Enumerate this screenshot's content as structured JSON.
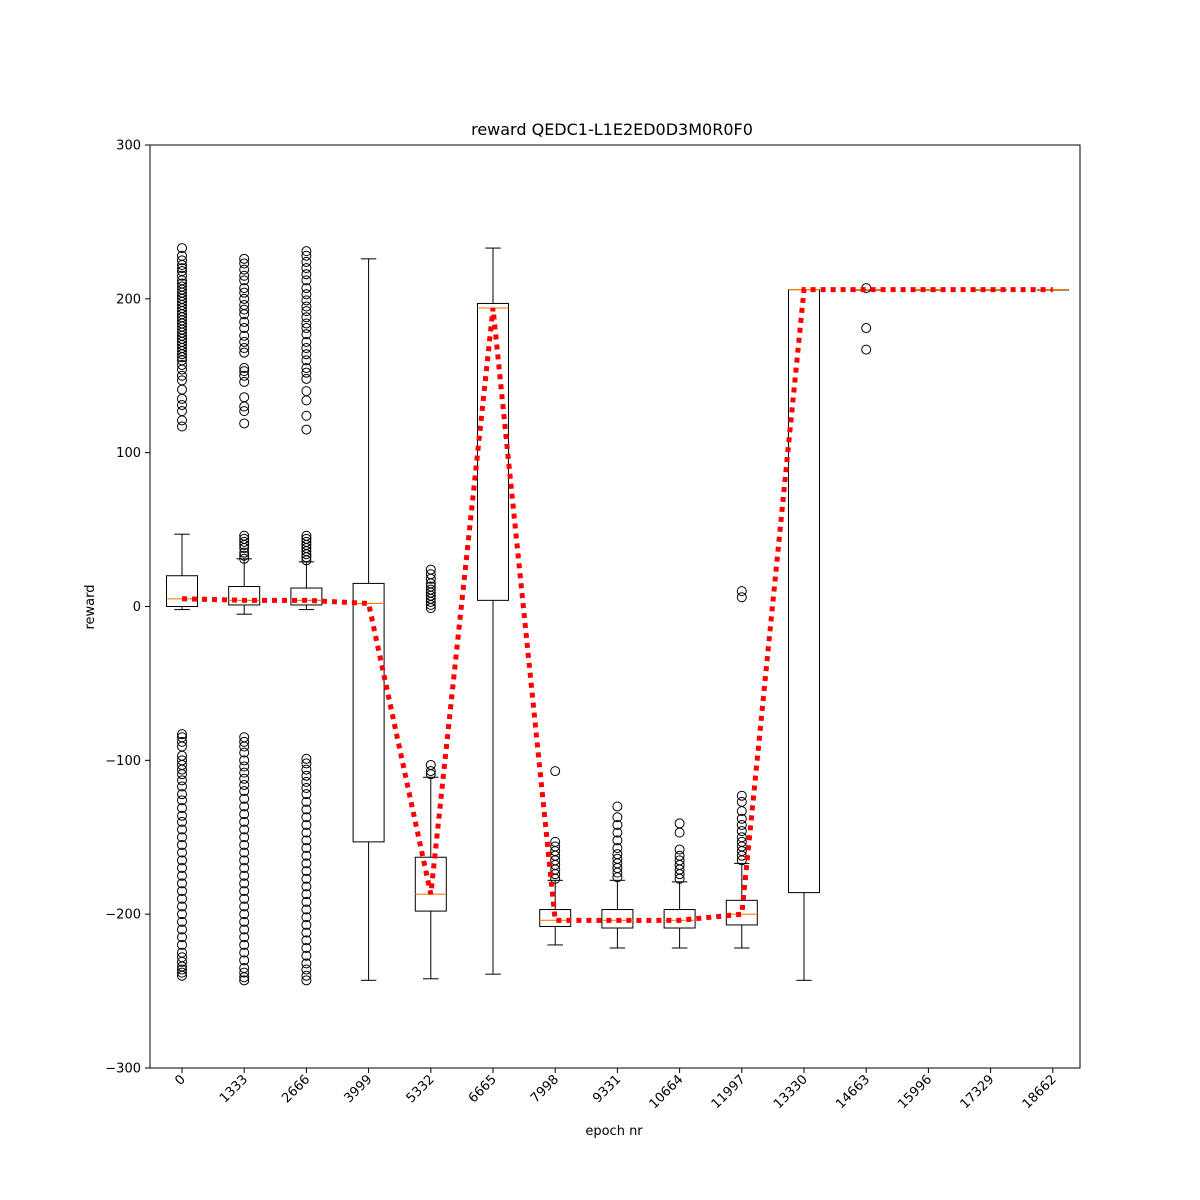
{
  "chart_data": {
    "type": "box",
    "title": "reward QEDC1-L1E2ED0D3M0R0F0",
    "xlabel": "epoch nr",
    "ylabel": "reward",
    "ylim": [
      -300,
      300
    ],
    "yticks": [
      -300,
      -200,
      -100,
      0,
      100,
      200,
      300
    ],
    "yticklabels": [
      "−300",
      "−200",
      "−100",
      "0",
      "100",
      "200",
      "300"
    ],
    "categories": [
      "0",
      "1333",
      "2666",
      "3999",
      "5332",
      "6665",
      "7998",
      "9331",
      "10664",
      "11997",
      "13330",
      "14663",
      "15996",
      "17329",
      "18662"
    ],
    "colors": {
      "box": "#000000",
      "median": "#ff7f0e",
      "mean_line": "#ff0000"
    },
    "boxes": [
      {
        "q1": 0,
        "median": 5,
        "q3": 20,
        "whisker_low": -2,
        "whisker_high": 47,
        "outliers": [
          233,
          228,
          225,
          222,
          220,
          218,
          215,
          212,
          210,
          208,
          206,
          204,
          202,
          200,
          198,
          196,
          194,
          192,
          190,
          188,
          186,
          184,
          182,
          180,
          178,
          176,
          174,
          172,
          170,
          168,
          166,
          164,
          162,
          160,
          157,
          154,
          150,
          147,
          141,
          135,
          131,
          127,
          121,
          117,
          -83,
          -85,
          -88,
          -91,
          -97,
          -100,
          -103,
          -106,
          -109,
          -113,
          -117,
          -122,
          -126,
          -131,
          -136,
          -140,
          -145,
          -150,
          -155,
          -160,
          -165,
          -170,
          -175,
          -180,
          -185,
          -190,
          -195,
          -200,
          -205,
          -210,
          -215,
          -220,
          -225,
          -228,
          -231,
          -234,
          -236,
          -238,
          -240
        ]
      },
      {
        "q1": 1,
        "median": 4,
        "q3": 13,
        "whisker_low": -5,
        "whisker_high": 31,
        "outliers": [
          226,
          223,
          219,
          215,
          212,
          207,
          204,
          200,
          196,
          193,
          190,
          185,
          181,
          176,
          172,
          168,
          165,
          155,
          153,
          150,
          146,
          136,
          130,
          127,
          119,
          46,
          44,
          42,
          40,
          38,
          35,
          33,
          31,
          -85,
          -88,
          -91,
          -95,
          -100,
          -104,
          -108,
          -112,
          -116,
          -120,
          -125,
          -130,
          -135,
          -140,
          -145,
          -150,
          -155,
          -160,
          -165,
          -170,
          -175,
          -180,
          -185,
          -190,
          -195,
          -200,
          -205,
          -210,
          -215,
          -220,
          -225,
          -230,
          -235,
          -238,
          -241,
          -243
        ]
      },
      {
        "q1": 1,
        "median": 4,
        "q3": 12,
        "whisker_low": -2,
        "whisker_high": 29,
        "outliers": [
          231,
          228,
          224,
          220,
          216,
          212,
          207,
          203,
          199,
          195,
          192,
          188,
          184,
          181,
          177,
          172,
          168,
          164,
          160,
          155,
          152,
          148,
          140,
          134,
          124,
          115,
          46,
          44,
          42,
          40,
          38,
          36,
          34,
          32,
          30,
          -99,
          -102,
          -106,
          -110,
          -114,
          -118,
          -122,
          -127,
          -132,
          -137,
          -142,
          -147,
          -152,
          -157,
          -162,
          -167,
          -172,
          -177,
          -182,
          -187,
          -192,
          -197,
          -202,
          -207,
          -212,
          -217,
          -222,
          -227,
          -232,
          -236,
          -240,
          -243
        ]
      },
      {
        "q1": -153,
        "median": 2,
        "q3": 15,
        "whisker_low": -243,
        "whisker_high": 226,
        "outliers": []
      },
      {
        "q1": -198,
        "median": -187,
        "q3": -163,
        "whisker_low": -242,
        "whisker_high": -111,
        "outliers": [
          24,
          21,
          18,
          15,
          13,
          11,
          9,
          7,
          5,
          3,
          1,
          -1,
          -103,
          -107,
          -109
        ]
      },
      {
        "q1": 4,
        "median": 194,
        "q3": 197,
        "whisker_low": -239,
        "whisker_high": 233,
        "outliers": []
      },
      {
        "q1": -208,
        "median": -204,
        "q3": -197,
        "whisker_low": -220,
        "whisker_high": -178,
        "outliers": [
          -107,
          -153,
          -156,
          -159,
          -162,
          -165,
          -168,
          -171,
          -174,
          -177
        ]
      },
      {
        "q1": -209,
        "median": -204,
        "q3": -197,
        "whisker_low": -222,
        "whisker_high": -178,
        "outliers": [
          -130,
          -137,
          -142,
          -147,
          -152,
          -157,
          -161,
          -164,
          -167,
          -170,
          -173,
          -176
        ]
      },
      {
        "q1": -209,
        "median": -204,
        "q3": -197,
        "whisker_low": -222,
        "whisker_high": -179,
        "outliers": [
          -141,
          -147,
          -158,
          -162,
          -165,
          -168,
          -171,
          -174,
          -177
        ]
      },
      {
        "q1": -207,
        "median": -200,
        "q3": -191,
        "whisker_low": -222,
        "whisker_high": -167,
        "outliers": [
          10,
          6,
          -123,
          -127,
          -133,
          -138,
          -142,
          -146,
          -150,
          -153,
          -156,
          -159,
          -162,
          -165
        ]
      },
      {
        "q1": -186,
        "median": 206,
        "q3": 206,
        "whisker_low": -243,
        "whisker_high": 206,
        "outliers": []
      },
      {
        "q1": 206,
        "median": 206,
        "q3": 206,
        "whisker_low": 206,
        "whisker_high": 206,
        "outliers": [
          207,
          181,
          167
        ]
      },
      {
        "q1": 206,
        "median": 206,
        "q3": 206,
        "whisker_low": 206,
        "whisker_high": 206,
        "outliers": []
      },
      {
        "q1": 206,
        "median": 206,
        "q3": 206,
        "whisker_low": 206,
        "whisker_high": 206,
        "outliers": []
      },
      {
        "q1": 206,
        "median": 206,
        "q3": 206,
        "whisker_low": 206,
        "whisker_high": 206,
        "outliers": []
      }
    ],
    "mean_line": [
      5,
      4,
      4,
      2,
      -187,
      194,
      -204,
      -204,
      -204,
      -200,
      206,
      206,
      206,
      206,
      206
    ]
  }
}
